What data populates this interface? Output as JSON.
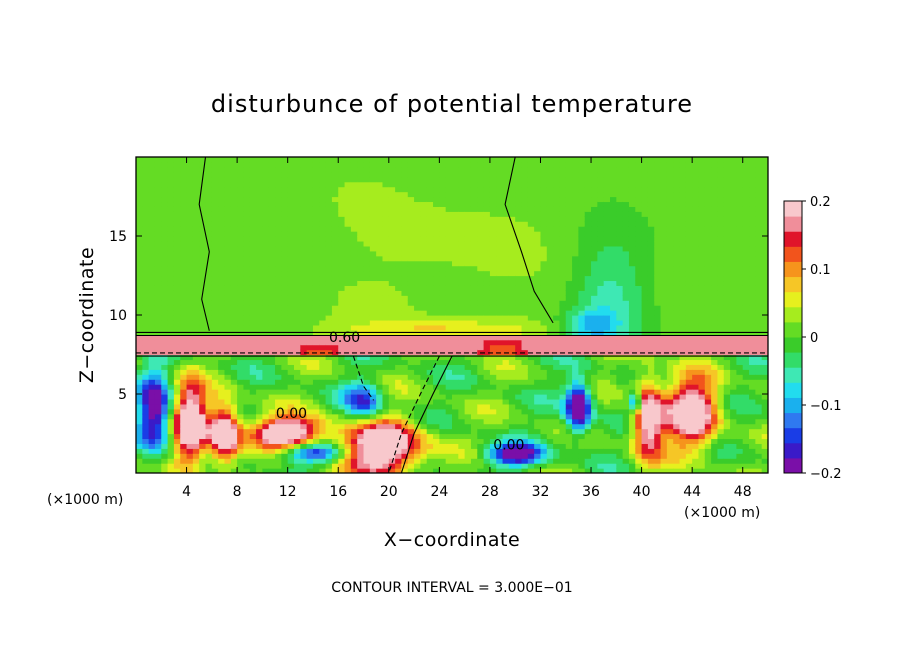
{
  "chart_data": {
    "type": "heatmap",
    "title": "disturbunce of potential temperature",
    "xlabel": "X−coordinate",
    "ylabel": "Z−coordinate",
    "x_unit": "(×1000 m)",
    "y_unit": "(×1000 m)",
    "xlim": [
      0,
      50
    ],
    "ylim": [
      0,
      20
    ],
    "x_ticks": [
      4,
      8,
      12,
      16,
      20,
      24,
      28,
      32,
      36,
      40,
      44,
      48
    ],
    "y_ticks": [
      5,
      10,
      15
    ],
    "contour_interval_text": "CONTOUR INTERVAL = 3.000E−01",
    "contour_labels": [
      {
        "text": "0.60",
        "x": 16.5,
        "z": 8.6
      },
      {
        "text": "0.00",
        "x": 12.3,
        "z": 3.8
      },
      {
        "text": "0.00",
        "x": 29.5,
        "z": 1.8
      }
    ],
    "colorbar": {
      "min": -0.2,
      "max": 0.2,
      "tick_labels": [
        "0.2",
        "0.1",
        "0",
        "−0.1",
        "−0.2"
      ],
      "tick_values": [
        0.2,
        0.1,
        0,
        -0.1,
        -0.2
      ],
      "colors": [
        "#7a0fa8",
        "#3a1ac8",
        "#1a3de6",
        "#2f79f0",
        "#1ab0ee",
        "#22dcee",
        "#3ee8b4",
        "#32dc68",
        "#3acc2a",
        "#64dc24",
        "#a6ec1e",
        "#e6f01e",
        "#f6c626",
        "#f6941c",
        "#f2541c",
        "#e0142a",
        "#f08e9a",
        "#f8c8cc"
      ]
    }
  },
  "layout": {
    "gridlines": false,
    "legend": "right colorbar"
  }
}
